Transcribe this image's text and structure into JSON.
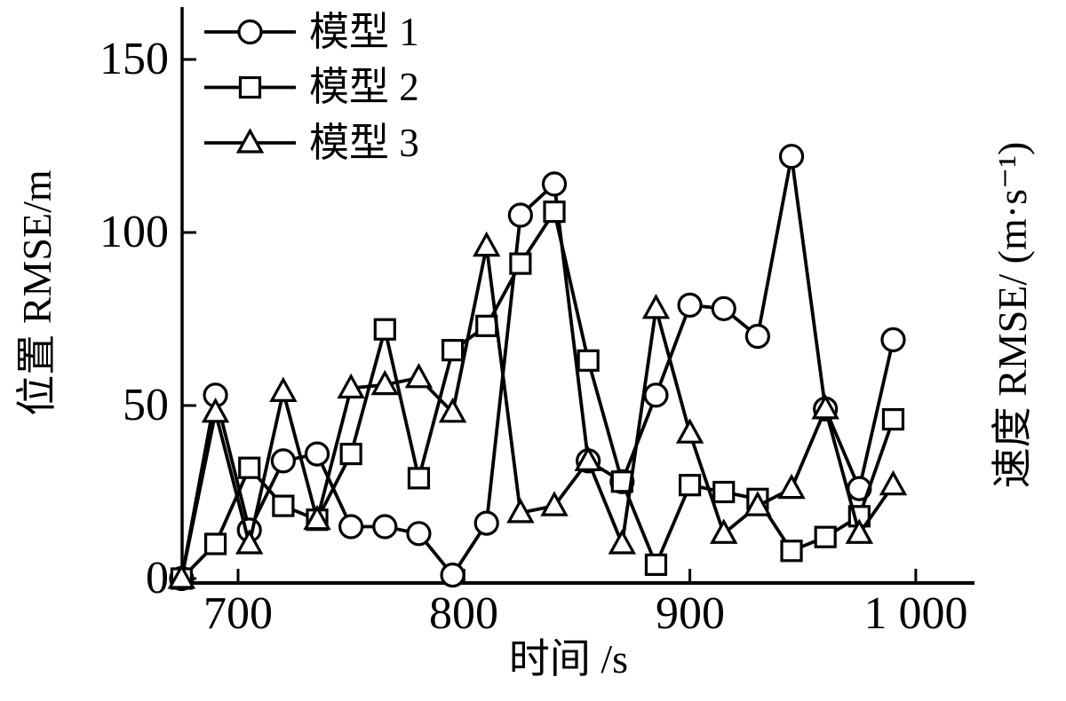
{
  "figure": {
    "background": "#ffffff",
    "ink_color": "#000000"
  },
  "chart_data": {
    "type": "line",
    "title": "",
    "xlabel": "时间 /s",
    "ylabel_left": "位置 RMSE/m",
    "ylabel_right": "速度 RMSE/ (m·s⁻¹)",
    "xlim": [
      675,
      1025
    ],
    "ylim": [
      0,
      160
    ],
    "grid": false,
    "legend_position": "top-left",
    "xticks": [
      {
        "value": 700,
        "label": "700"
      },
      {
        "value": 800,
        "label": "800"
      },
      {
        "value": 900,
        "label": "900"
      },
      {
        "value": 1000,
        "label": "1 000"
      }
    ],
    "yticks": [
      {
        "value": 0,
        "label": "0"
      },
      {
        "value": 50,
        "label": "50"
      },
      {
        "value": 100,
        "label": "100"
      },
      {
        "value": 150,
        "label": "150"
      }
    ],
    "x": [
      675,
      690,
      705,
      720,
      735,
      750,
      765,
      780,
      795,
      810,
      825,
      840,
      855,
      870,
      885,
      900,
      915,
      930,
      945,
      960,
      975,
      990
    ],
    "series": [
      {
        "name": "模型 1",
        "marker": "circle",
        "color": "#000000",
        "values": [
          0,
          53,
          14,
          34,
          36,
          15,
          15,
          13,
          1,
          16,
          105,
          114,
          34,
          28,
          53,
          79,
          78,
          70,
          122,
          49,
          26,
          69
        ]
      },
      {
        "name": "模型 2",
        "marker": "square",
        "color": "#000000",
        "values": [
          0,
          10,
          32,
          21,
          17,
          36,
          72,
          29,
          66,
          73,
          91,
          106,
          63,
          28,
          4,
          27,
          25,
          23,
          8,
          12,
          18,
          46
        ]
      },
      {
        "name": "模型 3",
        "marker": "triangle",
        "color": "#000000",
        "values": [
          0,
          48,
          10,
          54,
          17,
          55,
          56,
          58,
          48,
          96,
          19,
          21,
          34,
          10,
          78,
          42,
          13,
          21,
          26,
          49,
          13,
          27
        ]
      }
    ]
  }
}
